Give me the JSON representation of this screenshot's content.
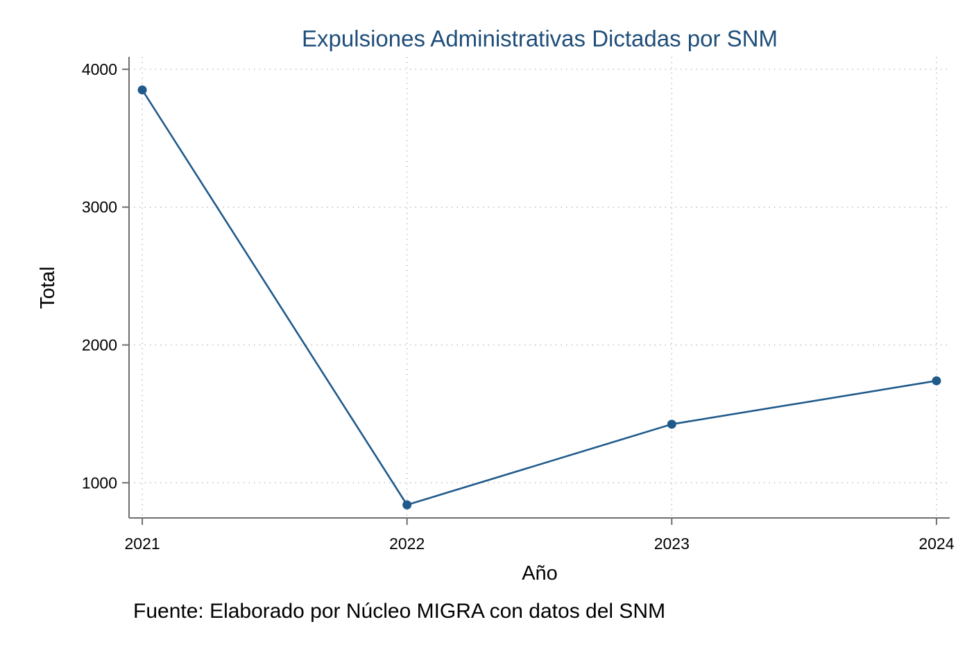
{
  "chart_data": {
    "type": "line",
    "title": "Expulsiones Administrativas Dictadas por SNM",
    "xlabel": "Año",
    "ylabel": "Total",
    "note": "Fuente: Elaborado por Núcleo MIGRA con datos del SNM",
    "x": [
      2021,
      2022,
      2023,
      2024
    ],
    "x_tick_labels": [
      "2021",
      "2022",
      "2023",
      "2024"
    ],
    "series": [
      {
        "values": [
          3850,
          840,
          1425,
          1740
        ],
        "color": "#1f5a8b"
      }
    ],
    "y_ticks": [
      1000,
      2000,
      3000,
      4000
    ],
    "y_tick_labels": [
      "1000",
      "2000",
      "3000",
      "4000"
    ],
    "ylim": [
      745,
      4090
    ],
    "xlim": [
      2020.95,
      2024.05
    ],
    "grid": true,
    "legend": "none"
  },
  "colors": {
    "title": "#1f4e79",
    "line": "#1f5a8b",
    "grid": "#bdbdbd",
    "axis": "#6e6e6e"
  }
}
